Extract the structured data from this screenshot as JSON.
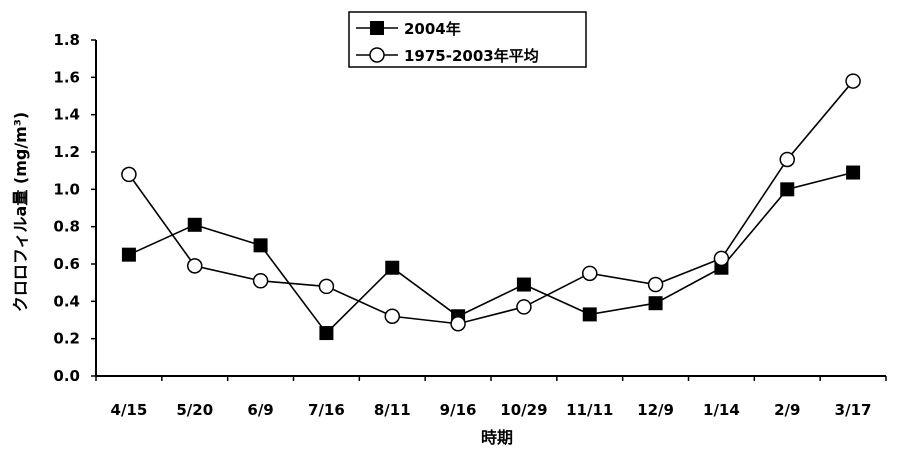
{
  "chart_data": {
    "type": "line",
    "title": "",
    "xlabel": "時期",
    "ylabel": "クロロフィルa量 (mg/m³)",
    "categories": [
      "4/15",
      "5/20",
      "6/9",
      "7/16",
      "8/11",
      "9/16",
      "10/29",
      "11/11",
      "12/9",
      "1/14",
      "2/9",
      "3/17"
    ],
    "ylim": [
      0,
      1.8
    ],
    "yticks": [
      "0.0",
      "0.2",
      "0.4",
      "0.6",
      "0.8",
      "1.0",
      "1.2",
      "1.4",
      "1.6",
      "1.8"
    ],
    "grid": false,
    "legend_position": "top-center",
    "series": [
      {
        "name": "2004年",
        "marker": "filled-square",
        "color": "#000000",
        "values": [
          0.65,
          0.81,
          0.7,
          0.23,
          0.58,
          0.32,
          0.49,
          0.33,
          0.39,
          0.58,
          1.0,
          1.09
        ]
      },
      {
        "name": "1975-2003年平均",
        "marker": "open-circle",
        "color": "#000000",
        "values": [
          1.08,
          0.59,
          0.51,
          0.48,
          0.32,
          0.28,
          0.37,
          0.55,
          0.49,
          0.63,
          1.16,
          1.58
        ]
      }
    ]
  }
}
